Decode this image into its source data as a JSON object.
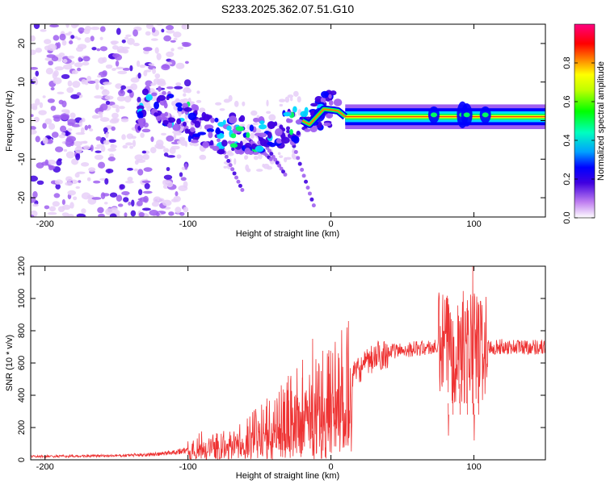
{
  "title": "S233.2025.362.07.51.G10",
  "chart_data": [
    {
      "type": "heatmap",
      "xlabel": "Height of straight line (km)",
      "ylabel": "Frequency (Hz)",
      "xlim": [
        -210,
        150
      ],
      "ylim": [
        -25,
        25
      ],
      "xticks": [
        -200,
        -100,
        0,
        100
      ],
      "yticks": [
        -20,
        -10,
        0,
        10,
        20
      ],
      "colorbar": {
        "label": "Normalized spectral amplitude",
        "ticks": [
          "0.0",
          "0.2",
          "0.4",
          "0.6",
          "0.8"
        ],
        "colors": [
          "#e8d0f8",
          "#a060f0",
          "#4000e0",
          "#0000ff",
          "#00d8ff",
          "#00ff60",
          "#ffff00",
          "#ff8000",
          "#ff0000",
          "#ff0080"
        ]
      },
      "ridge": {
        "points": [
          [
            -130,
            6
          ],
          [
            -120,
            4
          ],
          [
            -110,
            2
          ],
          [
            -100,
            0
          ],
          [
            -90,
            -2
          ],
          [
            -80,
            -4
          ],
          [
            -70,
            -3
          ],
          [
            -60,
            -4
          ],
          [
            -50,
            -4
          ],
          [
            -40,
            -3
          ],
          [
            -30,
            -2
          ],
          [
            -20,
            0
          ],
          [
            -15,
            -1
          ],
          [
            -10,
            1
          ],
          [
            -5,
            3
          ],
          [
            0,
            2.8
          ],
          [
            5,
            2.5
          ],
          [
            10,
            1
          ],
          [
            150,
            1
          ]
        ],
        "stable_from": 10,
        "stable_freq": 1
      }
    },
    {
      "type": "line",
      "xlabel": "Height of straight line (km)",
      "ylabel": "SNR (10 * v/v)",
      "xlim": [
        -210,
        150
      ],
      "ylim": [
        0,
        1200
      ],
      "xticks": [
        -200,
        -100,
        0,
        100
      ],
      "yticks": [
        0,
        200,
        400,
        600,
        800,
        1000,
        1200
      ],
      "color": "#ee3333",
      "envelope": [
        [
          -210,
          20
        ],
        [
          -150,
          25
        ],
        [
          -120,
          35
        ],
        [
          -100,
          60
        ],
        [
          -90,
          100
        ],
        [
          -80,
          110
        ],
        [
          -70,
          110
        ],
        [
          -60,
          140
        ],
        [
          -50,
          190
        ],
        [
          -40,
          240
        ],
        [
          -30,
          300
        ],
        [
          -20,
          350
        ],
        [
          -10,
          400
        ],
        [
          0,
          420
        ],
        [
          10,
          480
        ],
        [
          20,
          560
        ],
        [
          30,
          630
        ],
        [
          40,
          670
        ],
        [
          60,
          690
        ],
        [
          80,
          700
        ],
        [
          100,
          700
        ],
        [
          150,
          700
        ]
      ],
      "spikes": [
        [
          -45,
          380
        ],
        [
          -30,
          520
        ],
        [
          -20,
          620
        ],
        [
          -13,
          750
        ],
        [
          -7,
          550
        ],
        [
          -2,
          640
        ],
        [
          3,
          250
        ],
        [
          5,
          660
        ],
        [
          82,
          150
        ],
        [
          85,
          860
        ],
        [
          90,
          470
        ],
        [
          95,
          940
        ],
        [
          99,
          1200
        ],
        [
          100,
          120
        ],
        [
          103,
          760
        ]
      ]
    }
  ]
}
